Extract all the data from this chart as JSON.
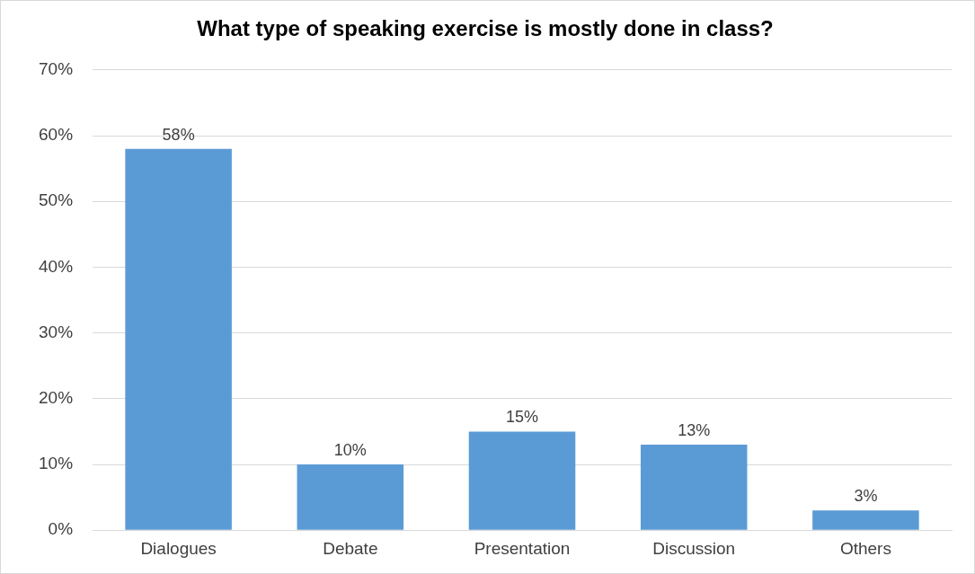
{
  "chart_data": {
    "type": "bar",
    "title": "What type of speaking exercise is mostly done in class?",
    "categories": [
      "Dialogues",
      "Debate",
      "Presentation",
      "Discussion",
      "Others"
    ],
    "values": [
      58,
      10,
      15,
      13,
      3
    ],
    "value_labels": [
      "58%",
      "10%",
      "15%",
      "13%",
      "3%"
    ],
    "color": "#5b9bd5",
    "ylim": [
      0,
      70
    ],
    "yticks": [
      {
        "value": 0,
        "label": "0%"
      },
      {
        "value": 10,
        "label": "10%"
      },
      {
        "value": 20,
        "label": "20%"
      },
      {
        "value": 30,
        "label": "30%"
      },
      {
        "value": 40,
        "label": "40%"
      },
      {
        "value": 50,
        "label": "50%"
      },
      {
        "value": 60,
        "label": "60%"
      },
      {
        "value": 70,
        "label": "70%"
      }
    ],
    "grid": "y",
    "legend": false
  }
}
